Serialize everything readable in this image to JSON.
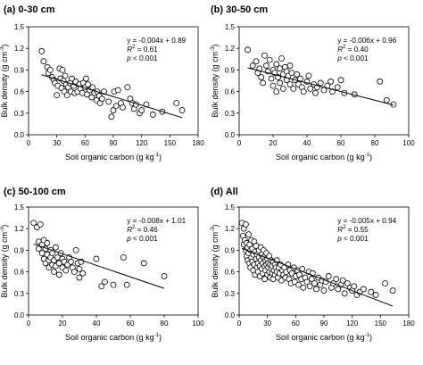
{
  "chart_data": [
    {
      "type": "scatter",
      "title": "(a) 0-30 cm",
      "xlabel": "Soil organic carbon (g kg",
      "xlabel_sup": "-1",
      "ylabel": "Bulk density (g cm",
      "ylabel_sup": "-3",
      "xlim": [
        0,
        180
      ],
      "ylim": [
        0.0,
        1.5
      ],
      "xticks": [
        0,
        30,
        60,
        90,
        120,
        150,
        180
      ],
      "yticks": [
        0.0,
        0.3,
        0.6,
        0.9,
        1.2,
        1.5
      ],
      "fit": {
        "slope": -0.004,
        "intercept": 0.89
      },
      "equation": "y = -0.004x + 0.89",
      "r2_label": "R",
      "r2_value": " = 0.61",
      "p_label": "p",
      "p_value": " < 0.001",
      "points": [
        [
          14,
          1.16
        ],
        [
          16,
          1.02
        ],
        [
          20,
          0.94
        ],
        [
          21,
          0.86
        ],
        [
          23,
          0.9
        ],
        [
          25,
          0.8
        ],
        [
          27,
          0.76
        ],
        [
          28,
          0.72
        ],
        [
          30,
          0.55
        ],
        [
          31,
          0.68
        ],
        [
          33,
          0.92
        ],
        [
          34,
          0.78
        ],
        [
          35,
          0.65
        ],
        [
          36,
          0.9
        ],
        [
          37,
          0.75
        ],
        [
          38,
          0.6
        ],
        [
          39,
          0.82
        ],
        [
          40,
          0.7
        ],
        [
          41,
          0.55
        ],
        [
          42,
          0.66
        ],
        [
          44,
          0.72
        ],
        [
          45,
          0.6
        ],
        [
          46,
          0.78
        ],
        [
          48,
          0.68
        ],
        [
          49,
          0.58
        ],
        [
          50,
          0.74
        ],
        [
          52,
          0.6
        ],
        [
          54,
          0.7
        ],
        [
          55,
          0.64
        ],
        [
          57,
          0.58
        ],
        [
          58,
          0.72
        ],
        [
          60,
          0.66
        ],
        [
          61,
          0.78
        ],
        [
          62,
          0.56
        ],
        [
          63,
          0.7
        ],
        [
          65,
          0.62
        ],
        [
          67,
          0.52
        ],
        [
          68,
          0.66
        ],
        [
          70,
          0.58
        ],
        [
          72,
          0.48
        ],
        [
          73,
          0.6
        ],
        [
          75,
          0.54
        ],
        [
          76,
          0.44
        ],
        [
          78,
          0.5
        ],
        [
          80,
          0.6
        ],
        [
          85,
          0.46
        ],
        [
          88,
          0.25
        ],
        [
          90,
          0.34
        ],
        [
          91,
          0.6
        ],
        [
          93,
          0.4
        ],
        [
          95,
          0.62
        ],
        [
          98,
          0.44
        ],
        [
          100,
          0.38
        ],
        [
          105,
          0.66
        ],
        [
          108,
          0.5
        ],
        [
          110,
          0.44
        ],
        [
          112,
          0.36
        ],
        [
          114,
          0.42
        ],
        [
          118,
          0.3
        ],
        [
          120,
          0.34
        ],
        [
          125,
          0.42
        ],
        [
          132,
          0.28
        ],
        [
          142,
          0.32
        ],
        [
          157,
          0.44
        ],
        [
          163,
          0.34
        ]
      ]
    },
    {
      "type": "scatter",
      "title": "(b) 30-50 cm",
      "xlabel": "Soil organic carbon (g kg",
      "xlabel_sup": "-1",
      "ylabel": "Bulk density (g cm",
      "ylabel_sup": "-3",
      "xlim": [
        0,
        100
      ],
      "ylim": [
        0.0,
        1.5
      ],
      "xticks": [
        0,
        20,
        40,
        60,
        80,
        100
      ],
      "yticks": [
        0.0,
        0.3,
        0.6,
        0.9,
        1.2,
        1.5
      ],
      "fit": {
        "slope": -0.006,
        "intercept": 0.96
      },
      "equation": "y = -0.006x + 0.96",
      "r2_label": "R",
      "r2_value": " = 0.40",
      "p_label": "p",
      "p_value": " < 0.001",
      "points": [
        [
          5,
          1.18
        ],
        [
          8,
          0.96
        ],
        [
          10,
          1.02
        ],
        [
          11,
          0.86
        ],
        [
          12,
          0.92
        ],
        [
          13,
          0.8
        ],
        [
          14,
          0.72
        ],
        [
          15,
          1.1
        ],
        [
          16,
          0.96
        ],
        [
          17,
          0.88
        ],
        [
          18,
          1.04
        ],
        [
          19,
          0.78
        ],
        [
          20,
          0.9
        ],
        [
          20,
          0.68
        ],
        [
          21,
          0.86
        ],
        [
          22,
          0.98
        ],
        [
          22,
          0.6
        ],
        [
          23,
          0.8
        ],
        [
          24,
          0.92
        ],
        [
          24,
          0.72
        ],
        [
          25,
          1.06
        ],
        [
          26,
          0.84
        ],
        [
          26,
          0.64
        ],
        [
          27,
          0.94
        ],
        [
          28,
          0.76
        ],
        [
          28,
          0.88
        ],
        [
          29,
          0.82
        ],
        [
          30,
          0.7
        ],
        [
          30,
          0.96
        ],
        [
          31,
          0.86
        ],
        [
          32,
          0.64
        ],
        [
          33,
          0.76
        ],
        [
          34,
          0.84
        ],
        [
          35,
          0.7
        ],
        [
          36,
          0.78
        ],
        [
          37,
          0.66
        ],
        [
          38,
          0.6
        ],
        [
          40,
          0.74
        ],
        [
          41,
          0.82
        ],
        [
          42,
          0.64
        ],
        [
          44,
          0.7
        ],
        [
          45,
          0.58
        ],
        [
          46,
          0.66
        ],
        [
          48,
          0.72
        ],
        [
          50,
          0.62
        ],
        [
          52,
          0.68
        ],
        [
          54,
          0.74
        ],
        [
          55,
          0.6
        ],
        [
          58,
          0.66
        ],
        [
          60,
          0.76
        ],
        [
          62,
          0.58
        ],
        [
          68,
          0.56
        ],
        [
          83,
          0.74
        ],
        [
          87,
          0.48
        ],
        [
          91,
          0.42
        ]
      ]
    },
    {
      "type": "scatter",
      "title": "(c) 50-100 cm",
      "xlabel": "Soil organic carbon (g kg",
      "xlabel_sup": "-1",
      "ylabel": "Bulk density (g cm",
      "ylabel_sup": "-3",
      "xlim": [
        0,
        100
      ],
      "ylim": [
        0.0,
        1.5
      ],
      "xticks": [
        0,
        20,
        40,
        60,
        80,
        100
      ],
      "yticks": [
        0.0,
        0.3,
        0.6,
        0.9,
        1.2,
        1.5
      ],
      "fit": {
        "slope": -0.008,
        "intercept": 1.01
      },
      "equation": "y = -0.008x + 1.01",
      "r2_label": "R",
      "r2_value": " = 0.46",
      "p_label": "p",
      "p_value": " < 0.001",
      "points": [
        [
          3,
          1.28
        ],
        [
          5,
          1.22
        ],
        [
          6,
          1.02
        ],
        [
          6,
          0.92
        ],
        [
          7,
          1.26
        ],
        [
          8,
          0.98
        ],
        [
          8,
          0.86
        ],
        [
          9,
          0.78
        ],
        [
          9,
          1.04
        ],
        [
          10,
          0.92
        ],
        [
          10,
          0.72
        ],
        [
          11,
          0.84
        ],
        [
          11,
          1.0
        ],
        [
          12,
          0.76
        ],
        [
          12,
          0.66
        ],
        [
          13,
          0.9
        ],
        [
          13,
          0.8
        ],
        [
          14,
          0.7
        ],
        [
          14,
          0.86
        ],
        [
          15,
          0.6
        ],
        [
          15,
          0.76
        ],
        [
          16,
          0.94
        ],
        [
          16,
          0.68
        ],
        [
          17,
          0.8
        ],
        [
          18,
          0.72
        ],
        [
          18,
          0.56
        ],
        [
          19,
          0.86
        ],
        [
          20,
          0.66
        ],
        [
          20,
          0.78
        ],
        [
          21,
          0.74
        ],
        [
          22,
          0.62
        ],
        [
          23,
          0.7
        ],
        [
          24,
          0.8
        ],
        [
          25,
          0.74
        ],
        [
          26,
          0.66
        ],
        [
          27,
          0.6
        ],
        [
          28,
          0.9
        ],
        [
          29,
          0.72
        ],
        [
          30,
          0.52
        ],
        [
          30,
          0.64
        ],
        [
          31,
          0.74
        ],
        [
          32,
          0.58
        ],
        [
          40,
          0.78
        ],
        [
          43,
          0.4
        ],
        [
          45,
          0.46
        ],
        [
          50,
          0.42
        ],
        [
          56,
          0.8
        ],
        [
          58,
          0.42
        ],
        [
          68,
          0.72
        ],
        [
          80,
          0.54
        ]
      ]
    },
    {
      "type": "scatter",
      "title": "(d) All",
      "xlabel": "Soil  organic carbon (g kg",
      "xlabel_sup": "-1",
      "ylabel": "Bulk density (g cm",
      "ylabel_sup": "-3",
      "xlim": [
        0,
        180
      ],
      "ylim": [
        0.0,
        1.5
      ],
      "xticks": [
        0,
        30,
        60,
        90,
        120,
        150,
        180
      ],
      "yticks": [
        0.0,
        0.3,
        0.6,
        0.9,
        1.2,
        1.5
      ],
      "fit": {
        "slope": -0.005,
        "intercept": 0.94
      },
      "equation": "y = -0.005x + 0.94",
      "r2_label": "R",
      "r2_value": " = 0.55",
      "p_label": "p",
      "p_value": " < 0.001",
      "points": [
        [
          3,
          1.28
        ],
        [
          4,
          1.1
        ],
        [
          5,
          1.2
        ],
        [
          5,
          0.98
        ],
        [
          6,
          1.04
        ],
        [
          7,
          0.9
        ],
        [
          7,
          1.26
        ],
        [
          8,
          0.82
        ],
        [
          8,
          1.0
        ],
        [
          9,
          0.94
        ],
        [
          9,
          0.76
        ],
        [
          10,
          1.12
        ],
        [
          10,
          0.86
        ],
        [
          11,
          0.72
        ],
        [
          11,
          0.98
        ],
        [
          12,
          0.9
        ],
        [
          12,
          0.66
        ],
        [
          13,
          0.8
        ],
        [
          13,
          1.04
        ],
        [
          14,
          0.74
        ],
        [
          14,
          0.92
        ],
        [
          15,
          0.62
        ],
        [
          15,
          0.84
        ],
        [
          16,
          1.02
        ],
        [
          16,
          0.7
        ],
        [
          17,
          0.88
        ],
        [
          17,
          0.56
        ],
        [
          18,
          0.78
        ],
        [
          18,
          0.96
        ],
        [
          19,
          0.66
        ],
        [
          19,
          0.84
        ],
        [
          20,
          0.72
        ],
        [
          20,
          0.6
        ],
        [
          21,
          0.9
        ],
        [
          21,
          0.8
        ],
        [
          22,
          0.68
        ],
        [
          22,
          0.54
        ],
        [
          23,
          0.76
        ],
        [
          23,
          0.94
        ],
        [
          24,
          0.64
        ],
        [
          24,
          0.84
        ],
        [
          25,
          0.72
        ],
        [
          25,
          0.58
        ],
        [
          26,
          0.8
        ],
        [
          26,
          0.9
        ],
        [
          27,
          0.68
        ],
        [
          27,
          0.5
        ],
        [
          28,
          0.76
        ],
        [
          28,
          0.62
        ],
        [
          29,
          0.86
        ],
        [
          29,
          0.7
        ],
        [
          30,
          0.56
        ],
        [
          30,
          0.78
        ],
        [
          31,
          0.66
        ],
        [
          31,
          0.72
        ],
        [
          32,
          0.6
        ],
        [
          32,
          0.82
        ],
        [
          33,
          0.7
        ],
        [
          33,
          0.52
        ],
        [
          34,
          0.64
        ],
        [
          34,
          0.76
        ],
        [
          35,
          0.58
        ],
        [
          35,
          0.68
        ],
        [
          36,
          0.74
        ],
        [
          36,
          0.5
        ],
        [
          37,
          0.62
        ],
        [
          38,
          0.7
        ],
        [
          38,
          0.56
        ],
        [
          39,
          0.66
        ],
        [
          40,
          0.6
        ],
        [
          40,
          0.76
        ],
        [
          41,
          0.52
        ],
        [
          42,
          0.66
        ],
        [
          43,
          0.58
        ],
        [
          44,
          0.7
        ],
        [
          45,
          0.48
        ],
        [
          46,
          0.62
        ],
        [
          47,
          0.56
        ],
        [
          48,
          0.66
        ],
        [
          49,
          0.52
        ],
        [
          50,
          0.6
        ],
        [
          52,
          0.7
        ],
        [
          53,
          0.5
        ],
        [
          54,
          0.62
        ],
        [
          55,
          0.44
        ],
        [
          56,
          0.58
        ],
        [
          58,
          0.66
        ],
        [
          59,
          0.46
        ],
        [
          60,
          0.54
        ],
        [
          62,
          0.62
        ],
        [
          63,
          0.42
        ],
        [
          64,
          0.56
        ],
        [
          66,
          0.5
        ],
        [
          67,
          0.64
        ],
        [
          68,
          0.38
        ],
        [
          70,
          0.52
        ],
        [
          72,
          0.46
        ],
        [
          74,
          0.6
        ],
        [
          75,
          0.4
        ],
        [
          77,
          0.5
        ],
        [
          78,
          0.58
        ],
        [
          80,
          0.44
        ],
        [
          82,
          0.36
        ],
        [
          84,
          0.52
        ],
        [
          86,
          0.42
        ],
        [
          88,
          0.48
        ],
        [
          90,
          0.34
        ],
        [
          92,
          0.46
        ],
        [
          95,
          0.54
        ],
        [
          98,
          0.38
        ],
        [
          100,
          0.44
        ],
        [
          103,
          0.5
        ],
        [
          105,
          0.36
        ],
        [
          108,
          0.42
        ],
        [
          110,
          0.48
        ],
        [
          112,
          0.3
        ],
        [
          115,
          0.44
        ],
        [
          118,
          0.38
        ],
        [
          120,
          0.34
        ],
        [
          122,
          0.4
        ],
        [
          125,
          0.28
        ],
        [
          128,
          0.32
        ],
        [
          132,
          0.36
        ],
        [
          140,
          0.32
        ],
        [
          145,
          0.28
        ],
        [
          155,
          0.44
        ],
        [
          163,
          0.34
        ]
      ]
    }
  ]
}
